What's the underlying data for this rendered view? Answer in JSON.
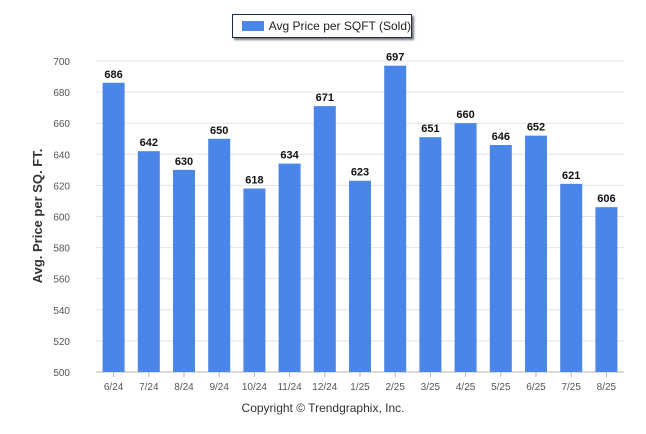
{
  "legend_label": "Avg Price per SQFT (Sold)",
  "footer_text": "Copyright © Trendgraphix, Inc.",
  "bar_color": "#4a86e8",
  "chart_data": {
    "type": "bar",
    "categories": [
      "6/24",
      "7/24",
      "8/24",
      "9/24",
      "10/24",
      "11/24",
      "12/24",
      "1/25",
      "2/25",
      "3/25",
      "4/25",
      "5/25",
      "6/25",
      "7/25",
      "8/25"
    ],
    "series": [
      {
        "name": "Avg Price per SQFT (Sold)",
        "values": [
          686,
          642,
          630,
          650,
          618,
          634,
          671,
          623,
          697,
          651,
          660,
          646,
          652,
          621,
          606
        ]
      }
    ],
    "ylabel": "Avg. Price per SQ. FT.",
    "xlabel": "",
    "ylim": [
      500,
      700
    ],
    "yticks": [
      500,
      520,
      540,
      560,
      580,
      600,
      620,
      640,
      660,
      680,
      700
    ],
    "grid": true,
    "legend_position": "top-center"
  }
}
